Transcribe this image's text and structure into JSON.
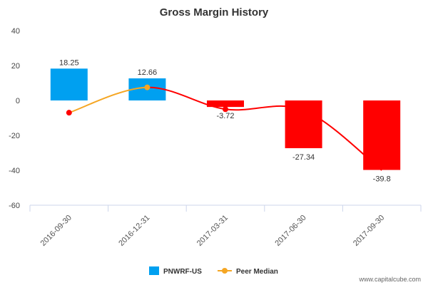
{
  "chart_data": {
    "type": "bar",
    "title": "Gross Margin History",
    "categories": [
      "2016-09-30",
      "2016-12-31",
      "2017-03-31",
      "2017-06-30",
      "2017-09-30"
    ],
    "series": [
      {
        "name": "PNWRF-US",
        "type": "bar",
        "values": [
          18.25,
          12.66,
          -3.72,
          -27.34,
          -39.8
        ]
      },
      {
        "name": "Peer Median",
        "type": "line",
        "values": [
          -7,
          7.5,
          -5,
          -5.5,
          -40
        ]
      }
    ],
    "data_labels": [
      "18.25",
      "12.66",
      "-3.72",
      "-27.34",
      "-39.8"
    ],
    "ylim": [
      -60,
      40
    ],
    "yticks": [
      40,
      20,
      0,
      -20,
      -40,
      -60
    ],
    "xlabel": "",
    "ylabel": "",
    "legend_position": "bottom-center"
  },
  "colors": {
    "positive_bar": "#00a0f0",
    "negative_bar": "#ff0000",
    "peer_line_up": "#f5a623",
    "peer_line_down": "#ff0000",
    "peer_marker_default": "#ff0000",
    "peer_marker_highlight": "#f5a623"
  },
  "watermark": "www.capitalcube.com"
}
